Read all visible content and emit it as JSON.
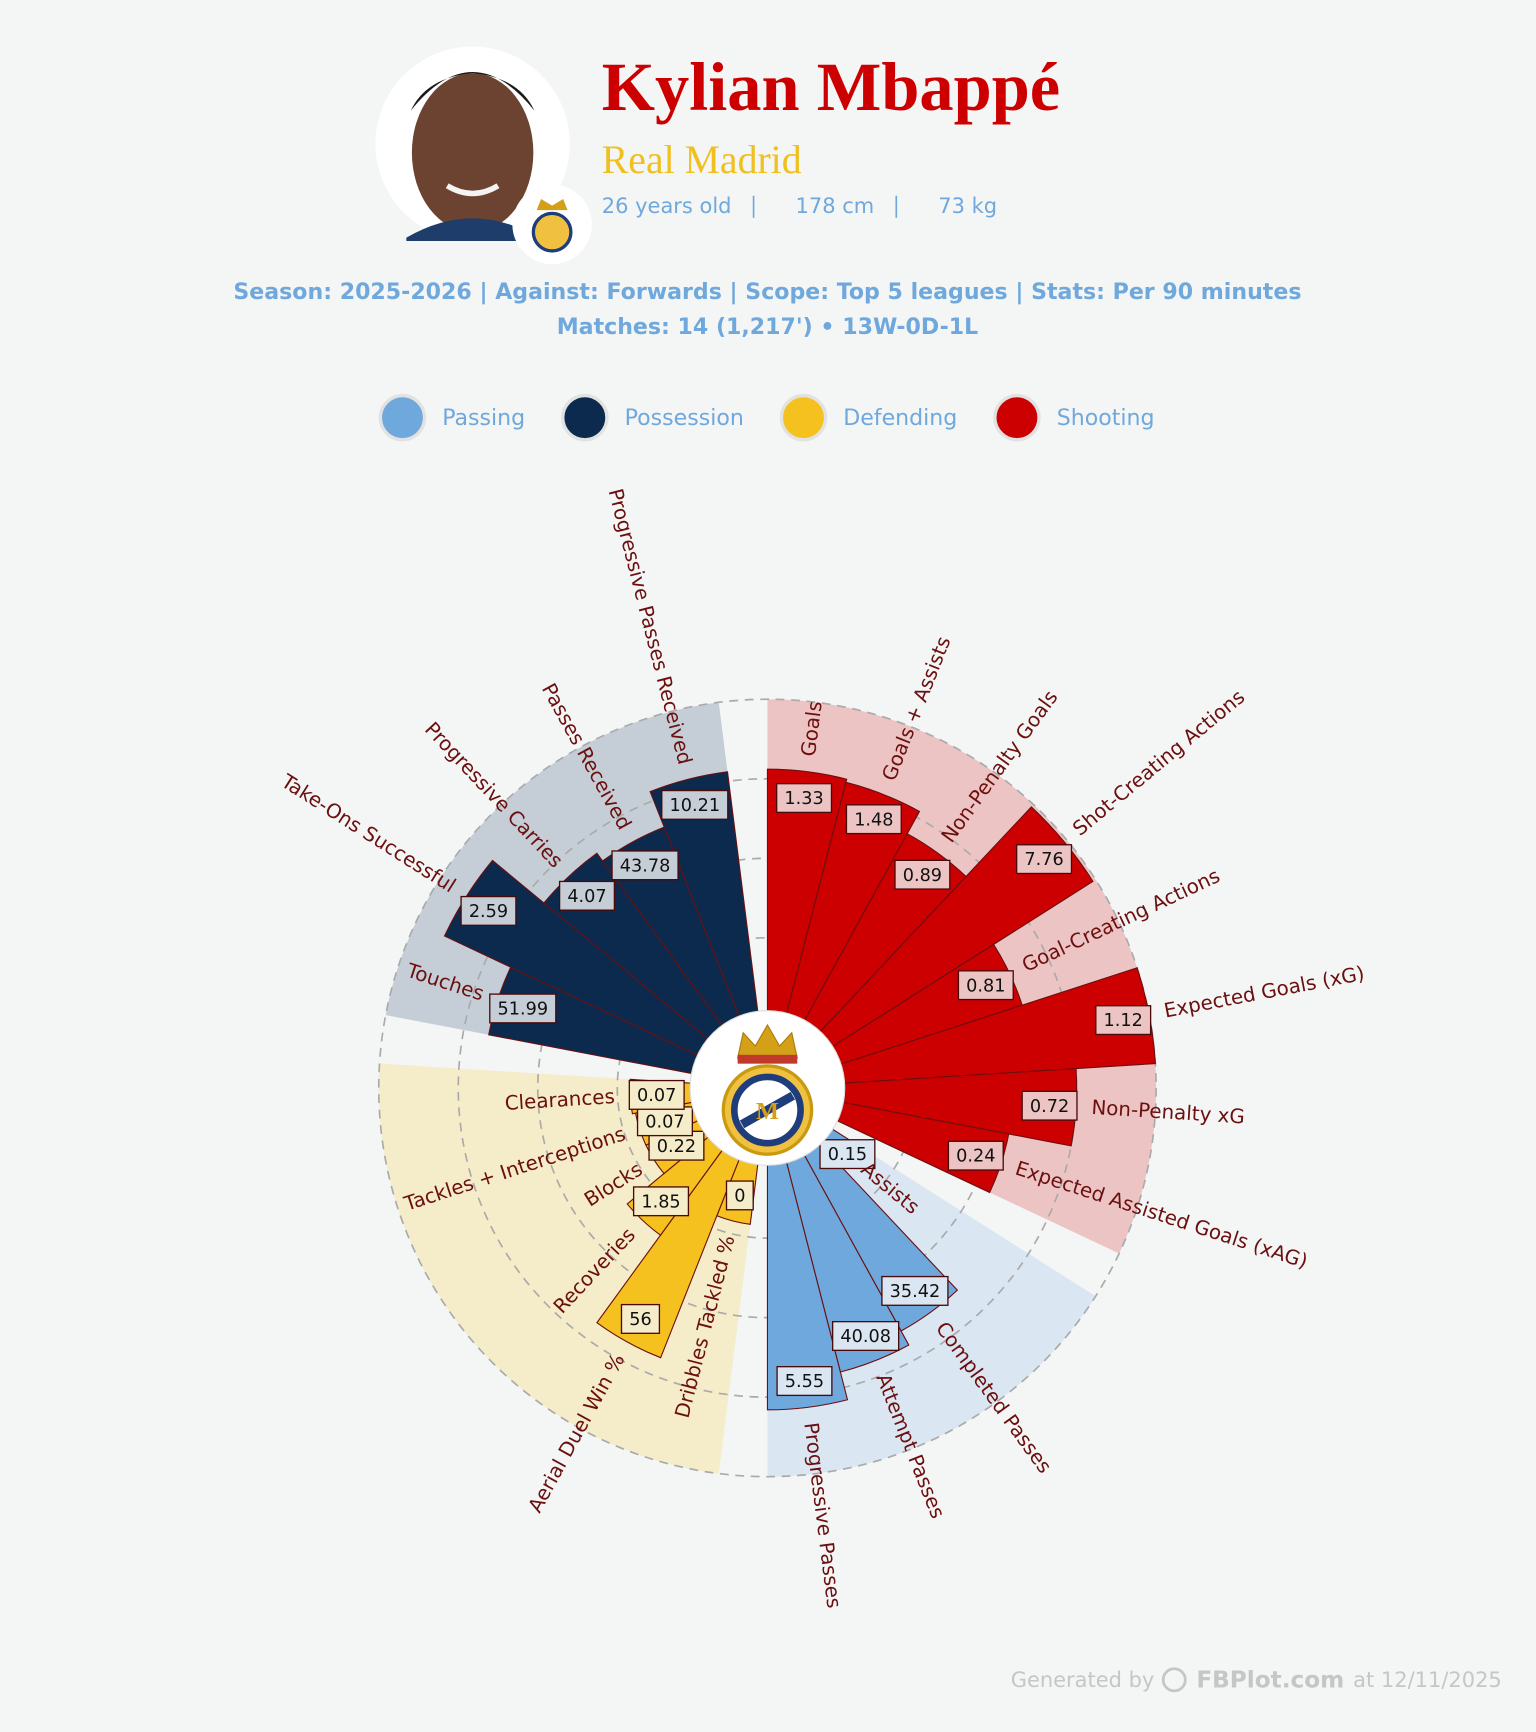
{
  "header": {
    "name": "Kylian Mbappé",
    "team": "Real Madrid",
    "details": [
      "26 years old",
      "178 cm",
      "73 kg"
    ]
  },
  "chart_data": {
    "type": "pizza",
    "subtitle": "Season: 2025-2026 | Against: Forwards | Scope: Top 5 leagues | Stats: Per 90 minutes",
    "subtitle2": "Matches: 14 (1,217') • 13W-0D-1L",
    "rlim": [
      0,
      100
    ],
    "rticks": [
      25,
      50,
      75,
      100
    ],
    "series": [
      {
        "name": "Passing",
        "color": "#6fa8dc",
        "background": "#dae6f1",
        "categories": [
          "Assists",
          "Completed Passes",
          "Attempt Passes",
          "Progressive Passes"
        ],
        "values": [
          12,
          65,
          70,
          79
        ],
        "stats": [
          0.15,
          35.42,
          40.08,
          5.55
        ]
      },
      {
        "name": "Possession",
        "color": "#0b2a4d",
        "background": "#c5ced6",
        "categories": [
          "Touches",
          "Take-Ons Successful",
          "Progressive Carries",
          "Passes Received",
          "Progressive Passes Received"
        ],
        "values": [
          67,
          90,
          69,
          66,
          78
        ],
        "stats": [
          51.99,
          2.59,
          4.07,
          43.78,
          10.21
        ]
      },
      {
        "name": "Defending",
        "color": "#f5c11f",
        "background": "#f5ecc9",
        "categories": [
          "Dribbles Tackled %",
          "Aerial Duel Win %",
          "Recoveries",
          "Blocks",
          "Tackles + Interceptions",
          "Clearances"
        ],
        "values": [
          21,
          69,
          35,
          20,
          20,
          21
        ],
        "stats": [
          0,
          56,
          1.85,
          0.22,
          0.07,
          0.07
        ]
      },
      {
        "name": "Shooting",
        "color": "#cc0000",
        "background": "#edc4c4",
        "categories": [
          "Goals",
          "Goals + Assists",
          "Non-Penalty Goals",
          "Shot-Creating Actions",
          "Goal-Creating Actions",
          "Expected Goals (xG)",
          "Non-Penalty xG",
          "Expected Assisted Goals (xAG)"
        ],
        "values": [
          78,
          77,
          69,
          99,
          62,
          100,
          75,
          55
        ],
        "stats": [
          1.33,
          1.48,
          0.89,
          7.76,
          0.81,
          1.12,
          0.72,
          0.24
        ]
      }
    ]
  },
  "footer": {
    "prefix": "Generated by",
    "brand": "FBPlot.com",
    "date": "at 12/11/2025"
  }
}
